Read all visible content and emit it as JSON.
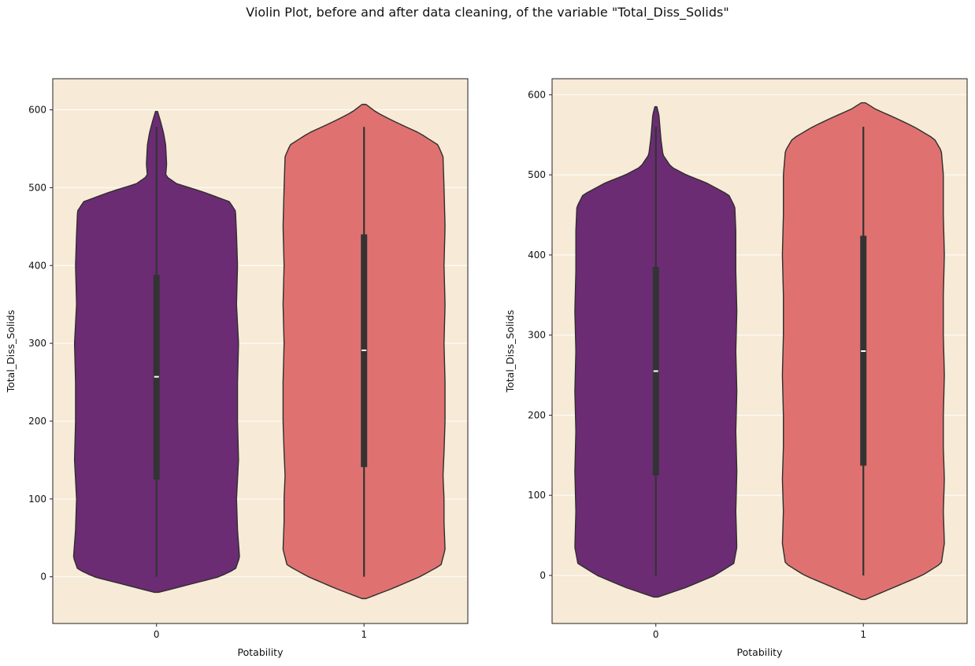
{
  "suptitle": "Violin Plot, before and after data cleaning, of the variable \"Total_Diss_Solids\"",
  "colors": {
    "background": "#f7ead6",
    "violin_0": "#6b2c74",
    "violin_1": "#df7270",
    "outline": "#2e2e2e",
    "grid": "#ffffff",
    "box": "#333333",
    "median": "#ffffff"
  },
  "chart_data": [
    {
      "type": "violin",
      "title": "",
      "xlabel": "Potability",
      "ylabel": "Total_Diss_Solids",
      "categories": [
        "0",
        "1"
      ],
      "ylim": [
        -60,
        640
      ],
      "yticks": [
        0,
        100,
        200,
        300,
        400,
        500,
        600
      ],
      "grid": "y",
      "violins": [
        {
          "category": "0",
          "min": 0,
          "q1": 125,
          "median": 257,
          "q3": 388,
          "max": 578,
          "kde_min": -20,
          "kde_max": 598,
          "profile": [
            [
              -20,
              0.02
            ],
            [
              -10,
              0.32
            ],
            [
              0,
              0.62
            ],
            [
              10,
              0.78
            ],
            [
              25,
              0.82
            ],
            [
              60,
              0.8
            ],
            [
              100,
              0.79
            ],
            [
              150,
              0.81
            ],
            [
              200,
              0.8
            ],
            [
              250,
              0.8
            ],
            [
              300,
              0.81
            ],
            [
              350,
              0.79
            ],
            [
              400,
              0.8
            ],
            [
              440,
              0.79
            ],
            [
              470,
              0.78
            ],
            [
              482,
              0.72
            ],
            [
              495,
              0.45
            ],
            [
              505,
              0.2
            ],
            [
              515,
              0.09
            ],
            [
              530,
              0.1
            ],
            [
              555,
              0.09
            ],
            [
              570,
              0.07
            ],
            [
              585,
              0.04
            ],
            [
              598,
              0.01
            ]
          ]
        },
        {
          "category": "1",
          "min": 0,
          "q1": 141,
          "median": 291,
          "q3": 440,
          "max": 578,
          "kde_min": -28,
          "kde_max": 607,
          "profile": [
            [
              -28,
              0.02
            ],
            [
              -15,
              0.28
            ],
            [
              0,
              0.55
            ],
            [
              15,
              0.76
            ],
            [
              35,
              0.8
            ],
            [
              70,
              0.79
            ],
            [
              100,
              0.79
            ],
            [
              130,
              0.78
            ],
            [
              160,
              0.79
            ],
            [
              200,
              0.8
            ],
            [
              250,
              0.8
            ],
            [
              300,
              0.79
            ],
            [
              350,
              0.8
            ],
            [
              400,
              0.79
            ],
            [
              450,
              0.8
            ],
            [
              500,
              0.79
            ],
            [
              540,
              0.78
            ],
            [
              555,
              0.73
            ],
            [
              570,
              0.55
            ],
            [
              585,
              0.3
            ],
            [
              597,
              0.12
            ],
            [
              607,
              0.02
            ]
          ]
        }
      ]
    },
    {
      "type": "violin",
      "title": "",
      "xlabel": "Potability",
      "ylabel": "Total_Diss_Solids",
      "categories": [
        "0",
        "1"
      ],
      "ylim": [
        -60,
        620
      ],
      "yticks": [
        0,
        100,
        200,
        300,
        400,
        500,
        600
      ],
      "grid": "y",
      "violins": [
        {
          "category": "0",
          "min": 0,
          "q1": 125,
          "median": 255,
          "q3": 385,
          "max": 560,
          "kde_min": -27,
          "kde_max": 585,
          "profile": [
            [
              -27,
              0.02
            ],
            [
              -15,
              0.3
            ],
            [
              0,
              0.58
            ],
            [
              15,
              0.77
            ],
            [
              35,
              0.8
            ],
            [
              80,
              0.79
            ],
            [
              130,
              0.8
            ],
            [
              180,
              0.79
            ],
            [
              230,
              0.8
            ],
            [
              280,
              0.79
            ],
            [
              330,
              0.8
            ],
            [
              380,
              0.79
            ],
            [
              430,
              0.79
            ],
            [
              460,
              0.78
            ],
            [
              475,
              0.72
            ],
            [
              490,
              0.5
            ],
            [
              500,
              0.3
            ],
            [
              510,
              0.15
            ],
            [
              525,
              0.07
            ],
            [
              545,
              0.05
            ],
            [
              560,
              0.04
            ],
            [
              575,
              0.03
            ],
            [
              585,
              0.01
            ]
          ]
        },
        {
          "category": "1",
          "min": 0,
          "q1": 137,
          "median": 280,
          "q3": 424,
          "max": 560,
          "kde_min": -30,
          "kde_max": 590,
          "profile": [
            [
              -30,
              0.02
            ],
            [
              -15,
              0.3
            ],
            [
              0,
              0.58
            ],
            [
              15,
              0.77
            ],
            [
              40,
              0.8
            ],
            [
              80,
              0.79
            ],
            [
              120,
              0.8
            ],
            [
              160,
              0.79
            ],
            [
              200,
              0.79
            ],
            [
              250,
              0.8
            ],
            [
              300,
              0.79
            ],
            [
              350,
              0.79
            ],
            [
              400,
              0.8
            ],
            [
              450,
              0.79
            ],
            [
              500,
              0.79
            ],
            [
              530,
              0.77
            ],
            [
              545,
              0.7
            ],
            [
              560,
              0.5
            ],
            [
              572,
              0.3
            ],
            [
              582,
              0.12
            ],
            [
              590,
              0.02
            ]
          ]
        }
      ]
    }
  ]
}
